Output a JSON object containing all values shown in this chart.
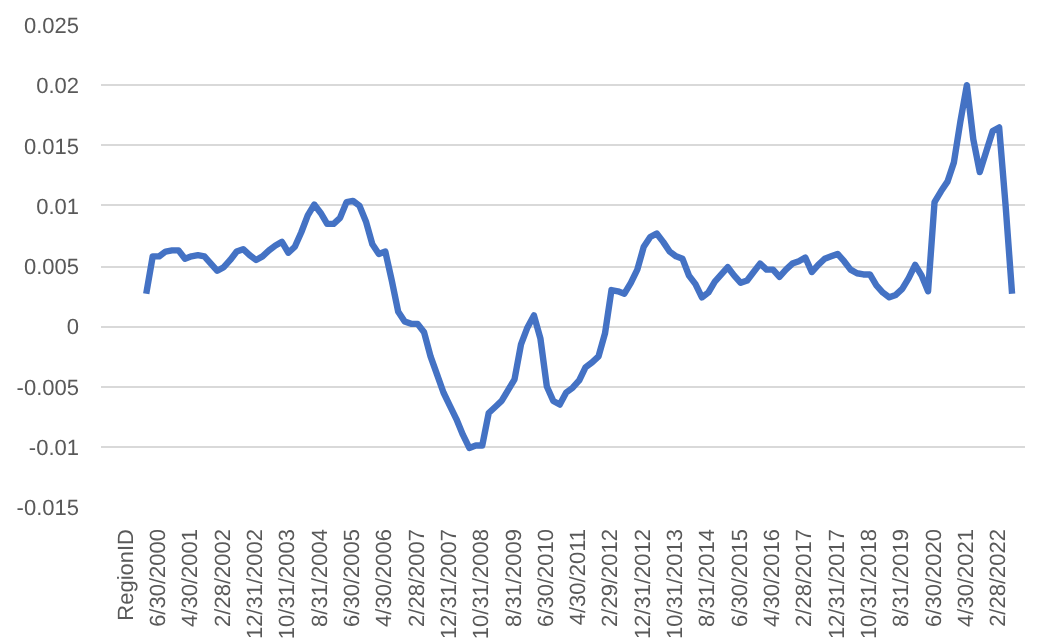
{
  "chart_data": {
    "type": "line",
    "categories": [
      "RegionID",
      null,
      null,
      null,
      null,
      "6/30/2000",
      null,
      null,
      null,
      null,
      "4/30/2001",
      null,
      null,
      null,
      null,
      "2/28/2002",
      null,
      null,
      null,
      null,
      "12/31/2002",
      null,
      null,
      null,
      null,
      "10/31/2003",
      null,
      null,
      null,
      null,
      "8/31/2004",
      null,
      null,
      null,
      null,
      "6/30/2005",
      null,
      null,
      null,
      null,
      "4/30/2006",
      null,
      null,
      null,
      null,
      "2/28/2007",
      null,
      null,
      null,
      null,
      "12/31/2007",
      null,
      null,
      null,
      null,
      "10/31/2008",
      null,
      null,
      null,
      null,
      "8/31/2009",
      null,
      null,
      null,
      null,
      "6/30/2010",
      null,
      null,
      null,
      null,
      "4/30/2011",
      null,
      null,
      null,
      null,
      "2/29/2012",
      null,
      null,
      null,
      null,
      "12/31/2012",
      null,
      null,
      null,
      null,
      "10/31/2013",
      null,
      null,
      null,
      null,
      "8/31/2014",
      null,
      null,
      null,
      null,
      "6/30/2015",
      null,
      null,
      null,
      null,
      "4/30/2016",
      null,
      null,
      null,
      null,
      "2/28/2017",
      null,
      null,
      null,
      null,
      "12/31/2017",
      null,
      null,
      null,
      null,
      "10/31/2018",
      null,
      null,
      null,
      null,
      "8/31/2019",
      null,
      null,
      null,
      null,
      "6/30/2020",
      null,
      null,
      null,
      null,
      "4/30/2021",
      null,
      null,
      null,
      null,
      "2/28/2022",
      null,
      null
    ],
    "series": [
      {
        "color": "#4472c4",
        "values": [
          null,
          null,
          null,
          0.0027,
          0.0058,
          0.0058,
          0.0062,
          0.0063,
          0.0063,
          0.0056,
          0.0058,
          0.0059,
          0.0058,
          0.0052,
          0.0046,
          0.0049,
          0.0055,
          0.0062,
          0.0064,
          0.0059,
          0.0055,
          0.0058,
          0.0063,
          0.0067,
          0.007,
          0.0061,
          0.0066,
          0.0078,
          0.0092,
          0.0101,
          0.0094,
          0.0085,
          0.0085,
          0.009,
          0.0103,
          0.0104,
          0.01,
          0.0087,
          0.0068,
          0.006,
          0.0062,
          0.0038,
          0.0012,
          0.0004,
          0.0002,
          0.0002,
          -0.0005,
          -0.0025,
          -0.004,
          -0.0055,
          -0.0066,
          -0.0077,
          -0.009,
          -0.0101,
          -0.0099,
          -0.0099,
          -0.0072,
          -0.0067,
          -0.0062,
          -0.0053,
          -0.0044,
          -0.0015,
          -0.0001,
          0.0009,
          -0.001,
          -0.005,
          -0.0062,
          -0.0065,
          -0.0055,
          -0.0051,
          -0.0045,
          -0.0034,
          -0.003,
          -0.0025,
          -0.0006,
          0.003,
          0.0029,
          0.0027,
          0.0036,
          0.0047,
          0.0066,
          0.0074,
          0.0077,
          0.007,
          0.0062,
          0.0058,
          0.0056,
          0.0042,
          0.0035,
          0.0024,
          0.0028,
          0.0037,
          0.0043,
          0.0049,
          0.0042,
          0.0036,
          0.0038,
          0.0045,
          0.0052,
          0.0047,
          0.0047,
          0.0041,
          0.0047,
          0.0052,
          0.0054,
          0.0057,
          0.0045,
          0.0051,
          0.0056,
          0.0058,
          0.006,
          0.0054,
          0.0047,
          0.0044,
          0.0043,
          0.0043,
          0.0034,
          0.0028,
          0.0024,
          0.0026,
          0.0031,
          0.004,
          0.0051,
          0.0042,
          0.0029,
          0.0103,
          0.0112,
          0.012,
          0.0136,
          0.017,
          0.02,
          0.0155,
          0.0128,
          0.0145,
          0.0162,
          0.0165,
          0.01,
          0.0027
        ]
      }
    ],
    "ylim": [
      -0.015,
      0.025
    ],
    "yticks": [
      -0.015,
      -0.01,
      -0.005,
      0,
      0.005,
      0.01,
      0.015,
      0.02,
      0.025
    ],
    "grid": "y",
    "marker": "none",
    "line_style": "solid"
  }
}
